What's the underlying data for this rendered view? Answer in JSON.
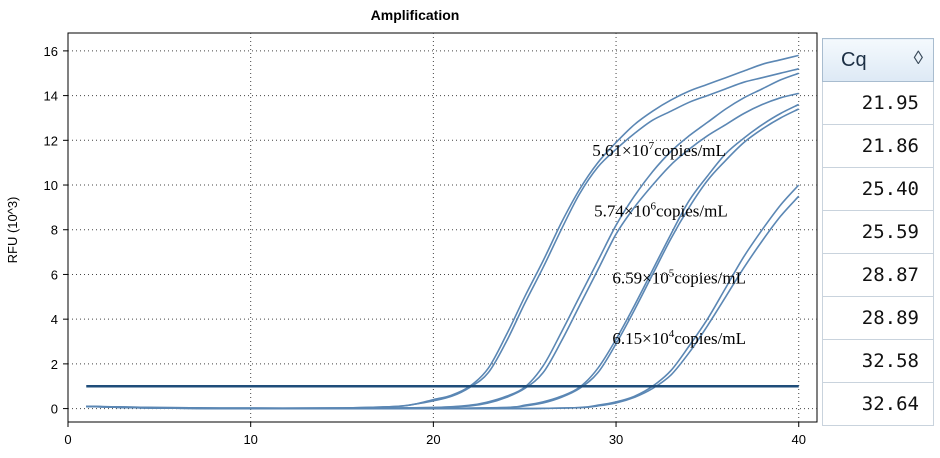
{
  "chart_data": {
    "type": "line",
    "title": "Amplification",
    "xlabel": "",
    "ylabel": "RFU (10^3)",
    "xlim": [
      0,
      41
    ],
    "ylim": [
      -0.6,
      16.8
    ],
    "xticks": [
      0,
      10,
      20,
      30,
      40
    ],
    "yticks": [
      0,
      2,
      4,
      6,
      8,
      10,
      12,
      14,
      16
    ],
    "grid": true,
    "threshold": 1.0,
    "series": [
      {
        "x": [
          1,
          5,
          10,
          15,
          18,
          19,
          20,
          21,
          22,
          23,
          24,
          25,
          26,
          27,
          28,
          29,
          30,
          31,
          32,
          33,
          34,
          35,
          36,
          37,
          38,
          39,
          40
        ],
        "y": [
          0.1,
          0.05,
          0.02,
          0.03,
          0.1,
          0.2,
          0.4,
          0.6,
          1.0,
          1.8,
          3.3,
          5.0,
          6.6,
          8.3,
          9.8,
          11.0,
          11.9,
          12.7,
          13.3,
          13.8,
          14.2,
          14.5,
          14.8,
          15.1,
          15.4,
          15.6,
          15.8
        ]
      },
      {
        "x": [
          1,
          5,
          10,
          15,
          18,
          19,
          20,
          21,
          22,
          23,
          24,
          25,
          26,
          27,
          28,
          29,
          30,
          31,
          32,
          33,
          34,
          35,
          36,
          37,
          38,
          39,
          40
        ],
        "y": [
          0.1,
          0.05,
          0.02,
          0.03,
          0.1,
          0.2,
          0.35,
          0.55,
          0.95,
          1.6,
          3.0,
          4.7,
          6.3,
          8.0,
          9.6,
          10.8,
          11.6,
          12.3,
          12.9,
          13.3,
          13.7,
          14.0,
          14.3,
          14.6,
          14.8,
          15.0,
          15.2
        ]
      },
      {
        "x": [
          1,
          5,
          10,
          15,
          20,
          22,
          23,
          24,
          25,
          26,
          27,
          28,
          29,
          30,
          31,
          32,
          33,
          34,
          35,
          36,
          37,
          38,
          39,
          40
        ],
        "y": [
          0.1,
          0.03,
          0.0,
          0.0,
          0.05,
          0.15,
          0.3,
          0.55,
          0.95,
          1.9,
          3.4,
          5.0,
          6.6,
          8.2,
          9.5,
          10.6,
          11.5,
          12.2,
          12.8,
          13.4,
          13.9,
          14.3,
          14.7,
          15.0
        ]
      },
      {
        "x": [
          1,
          5,
          10,
          15,
          20,
          22,
          23,
          24,
          25,
          26,
          27,
          28,
          29,
          30,
          31,
          32,
          33,
          34,
          35,
          36,
          37,
          38,
          39,
          40
        ],
        "y": [
          0.1,
          0.03,
          0.0,
          0.0,
          0.05,
          0.12,
          0.25,
          0.5,
          0.9,
          1.6,
          3.0,
          4.6,
          6.2,
          7.8,
          9.0,
          10.0,
          10.9,
          11.6,
          12.2,
          12.7,
          13.2,
          13.6,
          13.9,
          14.1
        ]
      },
      {
        "x": [
          1,
          5,
          10,
          15,
          20,
          24,
          25,
          26,
          27,
          28,
          29,
          30,
          31,
          32,
          33,
          34,
          35,
          36,
          37,
          38,
          39,
          40
        ],
        "y": [
          0.1,
          0.02,
          0.0,
          0.0,
          0.0,
          0.05,
          0.15,
          0.3,
          0.55,
          0.95,
          1.8,
          3.1,
          4.6,
          6.2,
          7.8,
          9.3,
          10.4,
          11.4,
          12.1,
          12.7,
          13.2,
          13.6
        ]
      },
      {
        "x": [
          1,
          5,
          10,
          15,
          20,
          24,
          25,
          26,
          27,
          28,
          29,
          30,
          31,
          32,
          33,
          34,
          35,
          36,
          37,
          38,
          39,
          40
        ],
        "y": [
          0.1,
          0.02,
          0.0,
          0.0,
          0.0,
          0.05,
          0.12,
          0.25,
          0.5,
          0.9,
          1.6,
          2.9,
          4.4,
          6.0,
          7.6,
          9.0,
          10.2,
          11.1,
          11.9,
          12.5,
          13.0,
          13.4
        ]
      },
      {
        "x": [
          1,
          5,
          10,
          15,
          20,
          25,
          28,
          29,
          30,
          31,
          32,
          33,
          34,
          35,
          36,
          37,
          38,
          39,
          40
        ],
        "y": [
          0.1,
          0.02,
          0.0,
          0.0,
          0.0,
          0.0,
          0.05,
          0.15,
          0.3,
          0.55,
          1.0,
          1.7,
          2.8,
          4.0,
          5.4,
          6.8,
          8.0,
          9.1,
          10.0
        ]
      },
      {
        "x": [
          1,
          5,
          10,
          15,
          20,
          25,
          28,
          29,
          30,
          31,
          32,
          33,
          34,
          35,
          36,
          37,
          38,
          39,
          40
        ],
        "y": [
          0.1,
          0.02,
          0.0,
          0.0,
          0.0,
          0.0,
          0.04,
          0.12,
          0.25,
          0.5,
          0.9,
          1.5,
          2.5,
          3.7,
          5.0,
          6.3,
          7.5,
          8.6,
          9.5
        ]
      }
    ],
    "annotations": [
      {
        "base": "5.61×10",
        "exp": "7",
        "unit": "copies/mL",
        "x": 28.7,
        "y": 11.3
      },
      {
        "base": "5.74×10",
        "exp": "6",
        "unit": "copies/mL",
        "x": 28.8,
        "y": 8.6
      },
      {
        "base": "6.59×10",
        "exp": "5",
        "unit": "copies/mL",
        "x": 29.8,
        "y": 5.6
      },
      {
        "base": "6.15×10",
        "exp": "4",
        "unit": "copies/mL",
        "x": 29.8,
        "y": 2.9
      }
    ]
  },
  "cq_table": {
    "header": "Cq",
    "sort_icon": "sort-diamond-icon",
    "values": [
      "21.95",
      "21.86",
      "25.40",
      "25.59",
      "28.87",
      "28.89",
      "32.58",
      "32.64"
    ]
  }
}
